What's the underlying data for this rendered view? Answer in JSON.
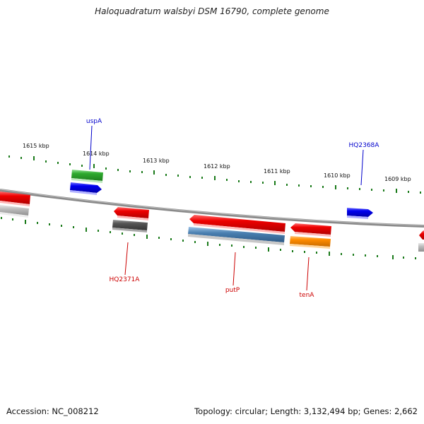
{
  "title": "Haloquadratum walsbyi DSM 16790, complete genome",
  "footer": {
    "accession": "Accession: NC_008212",
    "topology": "Topology: circular; Length: 3,132,494 bp; Genes: 2,662"
  },
  "kbp_labels": [
    "1615 kbp",
    "1614 kbp",
    "1613 kbp",
    "1612 kbp",
    "1611 kbp",
    "1610 kbp",
    "1609 kbp"
  ],
  "gene_labels": {
    "uspA": "uspA",
    "HQ2368A": "HQ2368A",
    "HQ2371A": "HQ2371A",
    "putP": "putP",
    "tenA": "tenA"
  },
  "colors": {
    "backbone": "#7a7a7a",
    "ticks": "#1a7a1a",
    "red": "#ee0000",
    "blue": "#0000ee",
    "green": "#2eaa2e",
    "gray": "#bcbcbc",
    "darkgray": "#555555",
    "steelblue": "#4a7fb0",
    "orange": "#ff8c00",
    "label_blue": "#0000cc",
    "label_red": "#cc0000"
  }
}
